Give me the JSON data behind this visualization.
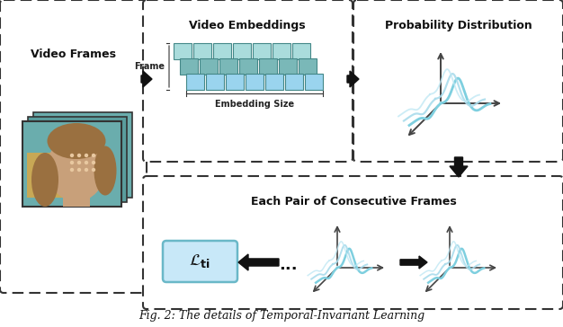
{
  "title": "Fig. 2: The details of Temporal-Invariant Learning",
  "bg": "#ffffff",
  "dash_color": "#333333",
  "text_color": "#111111",
  "labels": {
    "video_frames": "Video Frames",
    "video_embeddings": "Video Embeddings",
    "prob_dist": "Probability Distribution",
    "each_pair": "Each Pair of Consecutive Frames",
    "frame": "Frame",
    "embedding_size": "Embedding Size"
  },
  "embed_colors": [
    "#aadcdc",
    "#7ab8b8",
    "#9ad4ee"
  ],
  "curve_colors": [
    "#7ecfdf",
    "#aadcec",
    "#c0e8f4"
  ],
  "axis_color": "#444444",
  "arrow_color": "#111111",
  "loss_fill": "#c8e8f8",
  "loss_edge": "#6ab8c8"
}
